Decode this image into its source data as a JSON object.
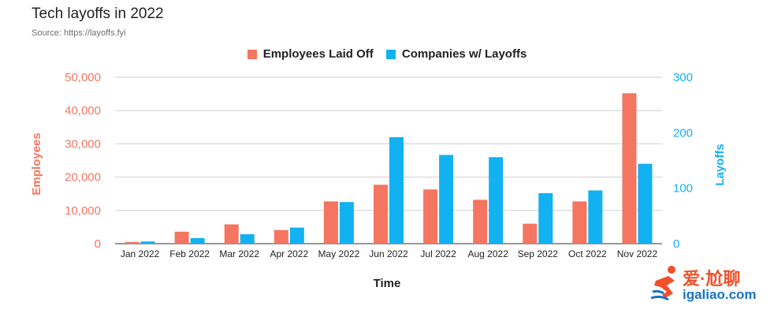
{
  "title": "Tech layoffs in 2022",
  "subtitle": "Source: https://layoffs.fyi",
  "legend": {
    "employees": "Employees Laid Off",
    "companies": "Companies w/ Layoffs"
  },
  "colors": {
    "employees": "#f47560",
    "companies": "#12b1f1",
    "grid": "#cfcfcf",
    "text": "#222222"
  },
  "watermark": {
    "top": "爱·尬聊",
    "bottom": "igaliao.com"
  },
  "chart_data": {
    "type": "bar",
    "title": "Tech layoffs in 2022",
    "xlabel": "Time",
    "ylabel": "Employees",
    "y2label": "Layoffs",
    "categories": [
      "Jan 2022",
      "Feb 2022",
      "Mar 2022",
      "Apr 2022",
      "May 2022",
      "Jun 2022",
      "Jul 2022",
      "Aug 2022",
      "Sep 2022",
      "Oct 2022",
      "Nov 2022"
    ],
    "series": [
      {
        "name": "Employees Laid Off",
        "axis": "left",
        "values": [
          500,
          3600,
          5800,
          4100,
          12700,
          17700,
          16300,
          13200,
          6000,
          12700,
          45200
        ]
      },
      {
        "name": "Companies w/ Layoffs",
        "axis": "right",
        "values": [
          4,
          10,
          17,
          29,
          75,
          192,
          160,
          156,
          91,
          96,
          144
        ]
      }
    ],
    "ylim": [
      0,
      50000
    ],
    "y2lim": [
      0,
      300
    ],
    "yticks": [
      "0",
      "10,000",
      "20,000",
      "30,000",
      "40,000",
      "50,000"
    ],
    "y2ticks": [
      "0",
      "100",
      "200",
      "300"
    ],
    "grid": true,
    "legend_position": "top"
  }
}
